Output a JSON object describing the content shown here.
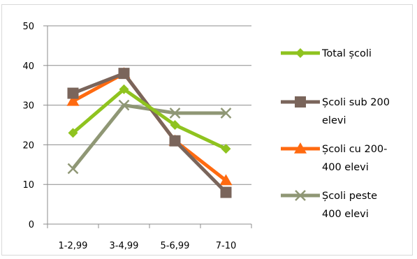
{
  "chart_data": {
    "type": "line",
    "categories": [
      "1-2,99",
      "3-4,99",
      "5-6,99",
      "7-10"
    ],
    "ylim": [
      0,
      50
    ],
    "yticks": [
      0,
      10,
      20,
      30,
      40,
      50
    ],
    "grid": "horizontal",
    "legend_position": "right",
    "series": [
      {
        "name": "Total școli",
        "legend_lines": [
          "Total școli"
        ],
        "values": [
          23,
          34,
          25,
          19
        ],
        "color": "#8fc31f",
        "marker": "diamond"
      },
      {
        "name": "Școli sub 200 elevi",
        "legend_lines": [
          "Școli sub 200",
          "elevi"
        ],
        "values": [
          33,
          38,
          21,
          8
        ],
        "color": "#7a655b",
        "marker": "square"
      },
      {
        "name": "Școli cu 200-400 elevi",
        "legend_lines": [
          "Școli cu 200-",
          "400 elevi"
        ],
        "values": [
          31,
          38,
          21,
          11
        ],
        "color": "#ff6a10",
        "marker": "triangle"
      },
      {
        "name": "Școli peste 400 elevi",
        "legend_lines": [
          "Școli peste",
          "400 elevi"
        ],
        "values": [
          14,
          30,
          28,
          28
        ],
        "color": "#8f9775",
        "marker": "x"
      }
    ]
  }
}
